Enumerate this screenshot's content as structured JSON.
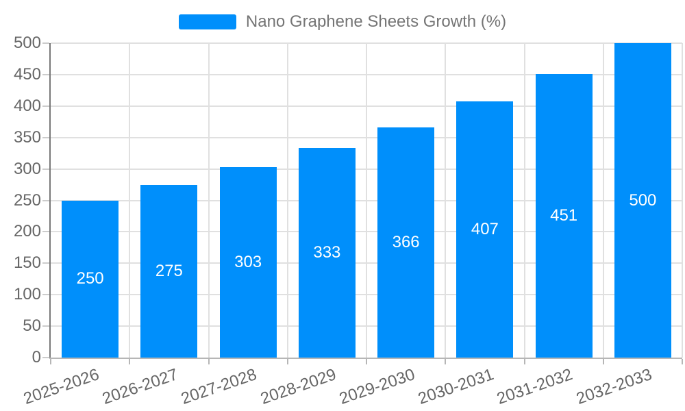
{
  "legend": {
    "label": "Nano Graphene Sheets Growth (%)",
    "marker_color": "#008FFB"
  },
  "chart_data": {
    "type": "bar",
    "title": "",
    "xlabel": "",
    "ylabel": "",
    "categories": [
      "2025-2026",
      "2026-2027",
      "2027-2028",
      "2028-2029",
      "2029-2030",
      "2030-2031",
      "2031-2032",
      "2032-2033"
    ],
    "series": [
      {
        "name": "Nano Graphene Sheets Growth (%)",
        "values": [
          250,
          275,
          303,
          333,
          366,
          407,
          451,
          500
        ],
        "color": "#008FFB"
      }
    ],
    "data_labels": [
      "250",
      "275",
      "303",
      "333",
      "366",
      "407",
      "451",
      "500"
    ],
    "ylim": [
      0,
      500
    ],
    "yticks": [
      0,
      50,
      100,
      150,
      200,
      250,
      300,
      350,
      400,
      450,
      500
    ],
    "grid": "horizontal and vertical category boundaries",
    "legend_position": "top-center",
    "bar_label_position": "inside-center"
  },
  "colors": {
    "bar": "#008FFB",
    "grid_line": "#e0e0e0",
    "y_axis_line": "#787878",
    "x_axis_line": "#b6b6b6",
    "x_tick": "#b6b6b6",
    "y_tick": "#cccccc",
    "axis_label": "#666666",
    "legend_text": "#757575",
    "data_label": "#ffffff",
    "background": "#ffffff"
  }
}
